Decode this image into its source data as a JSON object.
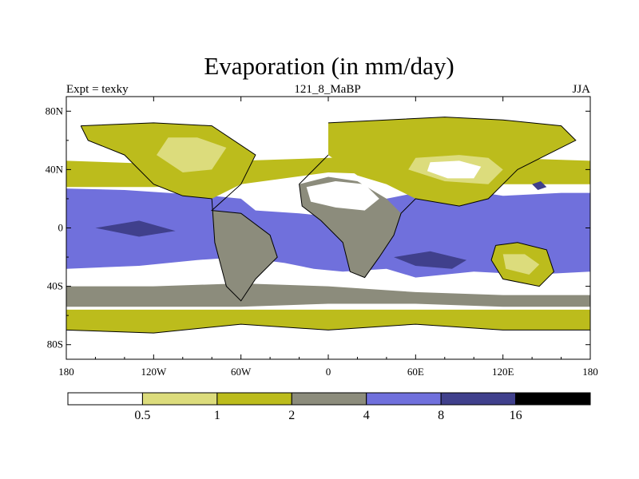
{
  "chart_data": {
    "type": "heatmap",
    "title": "Evaporation (in mm/day)",
    "left_string": "Expt = texky",
    "center_string": "121_8_MaBP",
    "right_string": "JJA",
    "x_ticks": [
      "180",
      "120W",
      "60W",
      "0",
      "60E",
      "120E",
      "180"
    ],
    "x_tick_values": [
      -180,
      -120,
      -60,
      0,
      60,
      120,
      180
    ],
    "y_ticks": [
      "80N",
      "40N",
      "0",
      "40S",
      "80S"
    ],
    "y_tick_values": [
      80,
      40,
      0,
      -40,
      -80
    ],
    "xlim": [
      -180,
      180
    ],
    "ylim": [
      -90,
      90
    ],
    "colorbar": {
      "levels": [
        "0.5",
        "1",
        "2",
        "4",
        "8",
        "16"
      ],
      "level_values": [
        0.5,
        1,
        2,
        4,
        8,
        16
      ],
      "colors": [
        "#ffffff",
        "#dcdc7c",
        "#bcbc1c",
        "#8c8c7c",
        "#7070dc",
        "#40408c",
        "#000000"
      ]
    },
    "regions": [
      {
        "name": "north-polar-cap",
        "level": 0,
        "lon": [
          -180,
          -150,
          -120,
          -90,
          -60,
          -30,
          0,
          30,
          60,
          90,
          120,
          150,
          180,
          180,
          -180
        ],
        "lat": [
          78,
          79,
          80,
          80,
          82,
          84,
          82,
          84,
          82,
          84,
          82,
          82,
          80,
          90,
          90
        ]
      },
      {
        "name": "n-mid-lat-band",
        "level": 2,
        "lon": [
          -180,
          -120,
          -60,
          0,
          60,
          120,
          180,
          180,
          120,
          60,
          0,
          -60,
          -120,
          -180
        ],
        "lat": [
          46,
          44,
          46,
          48,
          50,
          48,
          46,
          30,
          30,
          36,
          38,
          30,
          28,
          28
        ]
      },
      {
        "name": "tropical-ocean",
        "level": 4,
        "lon": [
          -180,
          -140,
          -110,
          -80,
          -60,
          -50,
          -20,
          0,
          20,
          40,
          80,
          120,
          160,
          180,
          180,
          140,
          100,
          60,
          40,
          10,
          -10,
          -30,
          -60,
          -90,
          -130,
          -180
        ],
        "lat": [
          27,
          26,
          24,
          22,
          20,
          12,
          10,
          8,
          8,
          20,
          28,
          22,
          24,
          24,
          -30,
          -32,
          -30,
          -34,
          -28,
          -30,
          -28,
          -24,
          -20,
          -22,
          -26,
          -28
        ]
      },
      {
        "name": "s-mid-lat-band",
        "level": 3,
        "lon": [
          -180,
          -120,
          -60,
          0,
          60,
          120,
          180,
          180,
          120,
          60,
          0,
          -60,
          -120,
          -180
        ],
        "lat": [
          -40,
          -40,
          -38,
          -40,
          -44,
          -46,
          -46,
          -54,
          -54,
          -52,
          -52,
          -54,
          -54,
          -54
        ]
      },
      {
        "name": "southern-ocean-band",
        "level": 2,
        "lon": [
          -180,
          -120,
          -60,
          0,
          60,
          120,
          180,
          180,
          120,
          60,
          0,
          -60,
          -120,
          -180
        ],
        "lat": [
          -56,
          -56,
          -56,
          -56,
          -56,
          -56,
          -56,
          -88,
          -88,
          -88,
          -88,
          -88,
          -88,
          -88
        ]
      },
      {
        "name": "n-america-land",
        "level": 2,
        "lon": [
          -170,
          -120,
          -80,
          -50,
          -60,
          -80,
          -100,
          -120,
          -140,
          -165
        ],
        "lat": [
          70,
          72,
          70,
          50,
          30,
          20,
          22,
          30,
          50,
          60
        ]
      },
      {
        "name": "n-america-interior",
        "level": 1,
        "lon": [
          -110,
          -90,
          -70,
          -80,
          -100,
          -118
        ],
        "lat": [
          62,
          62,
          55,
          40,
          38,
          50
        ]
      },
      {
        "name": "eurasia-land",
        "level": 2,
        "lon": [
          0,
          40,
          80,
          120,
          160,
          170,
          150,
          130,
          110,
          90,
          60,
          40,
          20,
          0
        ],
        "lat": [
          72,
          74,
          76,
          74,
          70,
          60,
          50,
          40,
          20,
          15,
          20,
          30,
          36,
          50
        ]
      },
      {
        "name": "asia-dry-interior",
        "level": 1,
        "lon": [
          60,
          90,
          110,
          120,
          110,
          80,
          55
        ],
        "lat": [
          48,
          50,
          48,
          40,
          30,
          32,
          40
        ]
      },
      {
        "name": "asia-desert-core",
        "level": 0,
        "lon": [
          70,
          90,
          105,
          100,
          82,
          68
        ],
        "lat": [
          45,
          46,
          42,
          34,
          34,
          39
        ]
      },
      {
        "name": "south-america-land",
        "level": 3,
        "lon": [
          -80,
          -60,
          -40,
          -35,
          -50,
          -60,
          -70,
          -78
        ],
        "lat": [
          12,
          10,
          -5,
          -20,
          -35,
          -50,
          -40,
          -10
        ]
      },
      {
        "name": "africa-land",
        "level": 3,
        "lon": [
          -20,
          0,
          20,
          40,
          50,
          45,
          35,
          25,
          15,
          10,
          -5,
          -18
        ],
        "lat": [
          30,
          35,
          32,
          20,
          10,
          -5,
          -20,
          -34,
          -30,
          -10,
          5,
          15
        ]
      },
      {
        "name": "sahara",
        "level": 0,
        "lon": [
          -15,
          5,
          25,
          35,
          25,
          5,
          -12
        ],
        "lat": [
          28,
          32,
          30,
          20,
          12,
          14,
          18
        ]
      },
      {
        "name": "australia-land",
        "level": 2,
        "lon": [
          115,
          130,
          150,
          155,
          145,
          120,
          112
        ],
        "lat": [
          -12,
          -10,
          -15,
          -30,
          -40,
          -35,
          -22
        ]
      },
      {
        "name": "australia-desert",
        "level": 1,
        "lon": [
          120,
          135,
          145,
          138,
          122
        ],
        "lat": [
          -18,
          -18,
          -25,
          -32,
          -28
        ]
      },
      {
        "name": "antarctica",
        "level": 0,
        "lon": [
          -180,
          -120,
          -60,
          0,
          60,
          120,
          180,
          180,
          -180
        ],
        "lat": [
          -70,
          -72,
          -66,
          -70,
          -66,
          -70,
          -70,
          -90,
          -90
        ]
      },
      {
        "name": "high-evap-pacific",
        "level": 5,
        "lon": [
          -160,
          -130,
          -105,
          -130
        ],
        "lat": [
          0,
          5,
          -2,
          -6
        ]
      },
      {
        "name": "high-evap-indian",
        "level": 5,
        "lon": [
          45,
          70,
          95,
          85,
          60
        ],
        "lat": [
          -20,
          -16,
          -22,
          -28,
          -26
        ]
      },
      {
        "name": "high-evap-asia-coast",
        "level": 5,
        "lon": [
          140,
          146,
          150,
          144
        ],
        "lat": [
          30,
          32,
          28,
          26
        ]
      }
    ],
    "coastlines": [
      {
        "name": "americas-coast",
        "lon": [
          -170,
          -120,
          -80,
          -50,
          -60,
          -80,
          -60,
          -40,
          -35,
          -50,
          -60,
          -70,
          -78,
          -80,
          -100,
          -120,
          -140,
          -165,
          -170
        ],
        "lat": [
          70,
          72,
          70,
          50,
          30,
          12,
          10,
          -5,
          -20,
          -35,
          -50,
          -40,
          -10,
          20,
          22,
          30,
          50,
          60,
          70
        ]
      },
      {
        "name": "eurasia-africa-coast",
        "lon": [
          0,
          40,
          80,
          120,
          160,
          170,
          150,
          130,
          110,
          90,
          60,
          50,
          45,
          35,
          25,
          15,
          10,
          -5,
          -18,
          -20,
          0
        ],
        "lat": [
          72,
          74,
          76,
          74,
          70,
          60,
          50,
          40,
          20,
          15,
          20,
          10,
          -5,
          -20,
          -34,
          -30,
          -10,
          5,
          15,
          30,
          50
        ]
      },
      {
        "name": "australia-coast",
        "lon": [
          115,
          130,
          150,
          155,
          145,
          120,
          112,
          115
        ],
        "lat": [
          -12,
          -10,
          -15,
          -30,
          -40,
          -35,
          -22,
          -12
        ]
      },
      {
        "name": "antarctica-coast",
        "lon": [
          -180,
          -120,
          -60,
          0,
          60,
          120,
          180
        ],
        "lat": [
          -70,
          -72,
          -66,
          -70,
          -66,
          -70,
          -70
        ]
      }
    ]
  }
}
